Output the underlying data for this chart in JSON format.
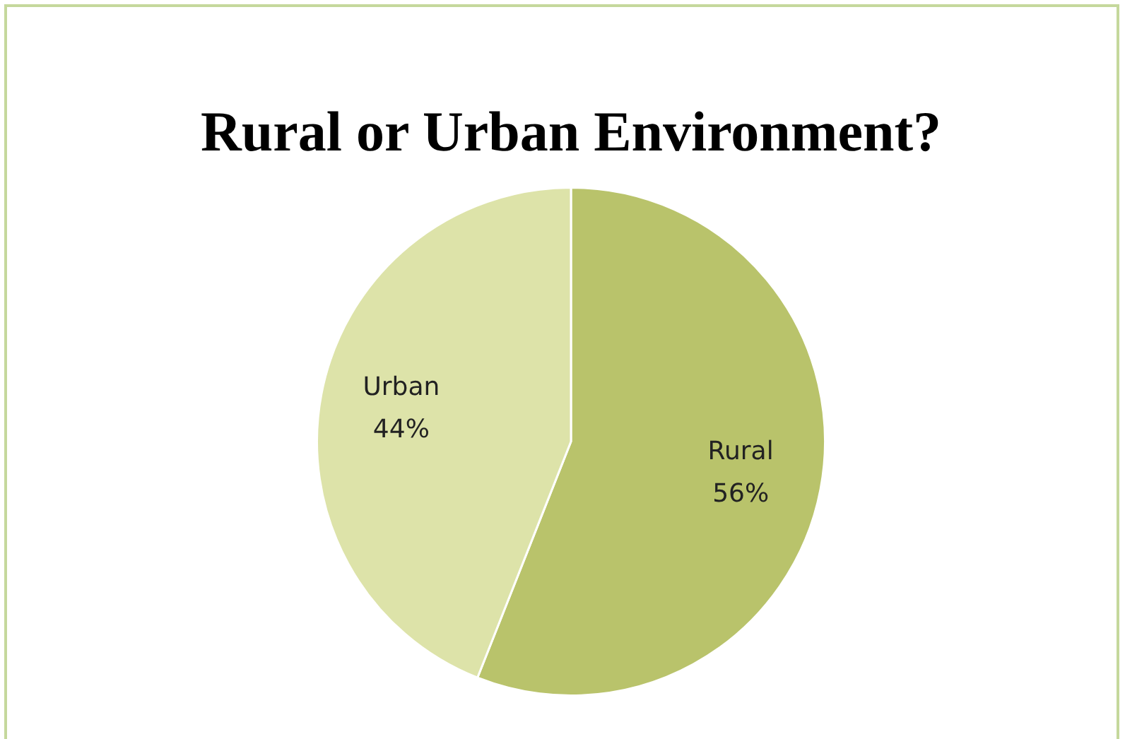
{
  "chart_data": {
    "type": "pie",
    "title": "Rural or Urban Environment?",
    "categories": [
      "Rural",
      "Urban"
    ],
    "values": [
      56,
      44
    ],
    "colors": [
      "#b9c36b",
      "#dde3a9"
    ],
    "value_labels": [
      "56%",
      "44%"
    ]
  }
}
